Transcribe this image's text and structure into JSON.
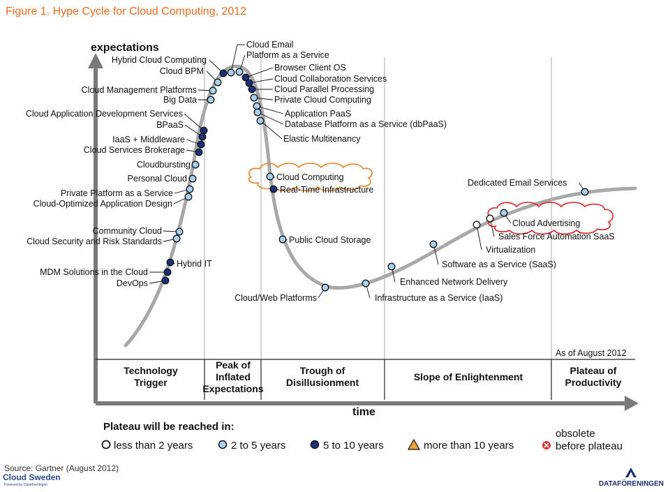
{
  "title": "Figure 1. Hype Cycle for Cloud Computing, 2012",
  "y_axis_label": "expectations",
  "x_axis_label": "time",
  "as_of": "As of August 2012",
  "phases": [
    "Technology Trigger",
    "Peak of Inflated Expectations",
    "Trough of Disillusionment",
    "Slope of Enlightenment",
    "Plateau of Productivity"
  ],
  "legend": {
    "title": "Plateau will be reached in:",
    "items": [
      {
        "label": "less than 2 years",
        "marker": "open-circle",
        "color": "#ffffff"
      },
      {
        "label": "2 to 5 years",
        "marker": "light-circle",
        "color": "#a8d0ec"
      },
      {
        "label": "5 to 10 years",
        "marker": "dark-circle",
        "color": "#1c2f7a"
      },
      {
        "label": "more than 10 years",
        "marker": "triangle",
        "color": "#f2a23a"
      },
      {
        "label": "obsolete before plateau",
        "marker": "x-circle",
        "color": "#e03030"
      }
    ]
  },
  "technologies": [
    {
      "name": "Hybrid Cloud Computing",
      "category": "5 to 10 years"
    },
    {
      "name": "Cloud BPM",
      "category": "2 to 5 years"
    },
    {
      "name": "Cloud Management Platforms",
      "category": "2 to 5 years"
    },
    {
      "name": "Big Data",
      "category": "2 to 5 years"
    },
    {
      "name": "Cloud Application Development Services",
      "category": "5 to 10 years"
    },
    {
      "name": "BPaaS",
      "category": "5 to 10 years"
    },
    {
      "name": "IaaS + Middleware",
      "category": "5 to 10 years"
    },
    {
      "name": "Cloud Services Brokerage",
      "category": "5 to 10 years"
    },
    {
      "name": "Cloudbursting",
      "category": "2 to 5 years"
    },
    {
      "name": "Personal Cloud",
      "category": "2 to 5 years"
    },
    {
      "name": "Private Platform as a Service",
      "category": "2 to 5 years"
    },
    {
      "name": "Cloud-Optimized Application Design",
      "category": "2 to 5 years"
    },
    {
      "name": "Community Cloud",
      "category": "2 to 5 years"
    },
    {
      "name": "Cloud Security and Risk Standards",
      "category": "2 to 5 years"
    },
    {
      "name": "Hybrid IT",
      "category": "5 to 10 years"
    },
    {
      "name": "MDM Solutions in the Cloud",
      "category": "5 to 10 years"
    },
    {
      "name": "DevOps",
      "category": "5 to 10 years"
    },
    {
      "name": "Cloud Email",
      "category": "2 to 5 years"
    },
    {
      "name": "Platform as a Service",
      "category": "2 to 5 years"
    },
    {
      "name": "Browser Client OS",
      "category": "5 to 10 years"
    },
    {
      "name": "Cloud Collaboration Services",
      "category": "5 to 10 years"
    },
    {
      "name": "Cloud Parallel Processing",
      "category": "5 to 10 years"
    },
    {
      "name": "Private Cloud Computing",
      "category": "2 to 5 years"
    },
    {
      "name": "Application PaaS",
      "category": "2 to 5 years"
    },
    {
      "name": "Database Platform as a Service (dbPaaS)",
      "category": "2 to 5 years"
    },
    {
      "name": "Elastic Multitenancy",
      "category": "2 to 5 years"
    },
    {
      "name": "Cloud Computing",
      "category": "2 to 5 years",
      "highlighted": true
    },
    {
      "name": "Real-Time Infrastructure",
      "category": "5 to 10 years"
    },
    {
      "name": "Public Cloud Storage",
      "category": "2 to 5 years"
    },
    {
      "name": "Cloud/Web Platforms",
      "category": "2 to 5 years"
    },
    {
      "name": "Infrastructure as a Service (IaaS)",
      "category": "2 to 5 years"
    },
    {
      "name": "Enhanced Network Delivery",
      "category": "2 to 5 years"
    },
    {
      "name": "Software as a Service (SaaS)",
      "category": "2 to 5 years"
    },
    {
      "name": "Virtualization",
      "category": "less than 2 years"
    },
    {
      "name": "Cloud Advertising",
      "category": "2 to 5 years",
      "highlighted": true
    },
    {
      "name": "Sales Force Automation SaaS",
      "category": "less than 2 years"
    },
    {
      "name": "Dedicated Email Services",
      "category": "2 to 5 years"
    }
  ],
  "source": "Source: Gartner (August 2012)",
  "logo_left": "Cloud Sweden",
  "logo_left_sub": "Powered by Dataföreningen",
  "logo_right": "DATAFÖRENINGEN"
}
